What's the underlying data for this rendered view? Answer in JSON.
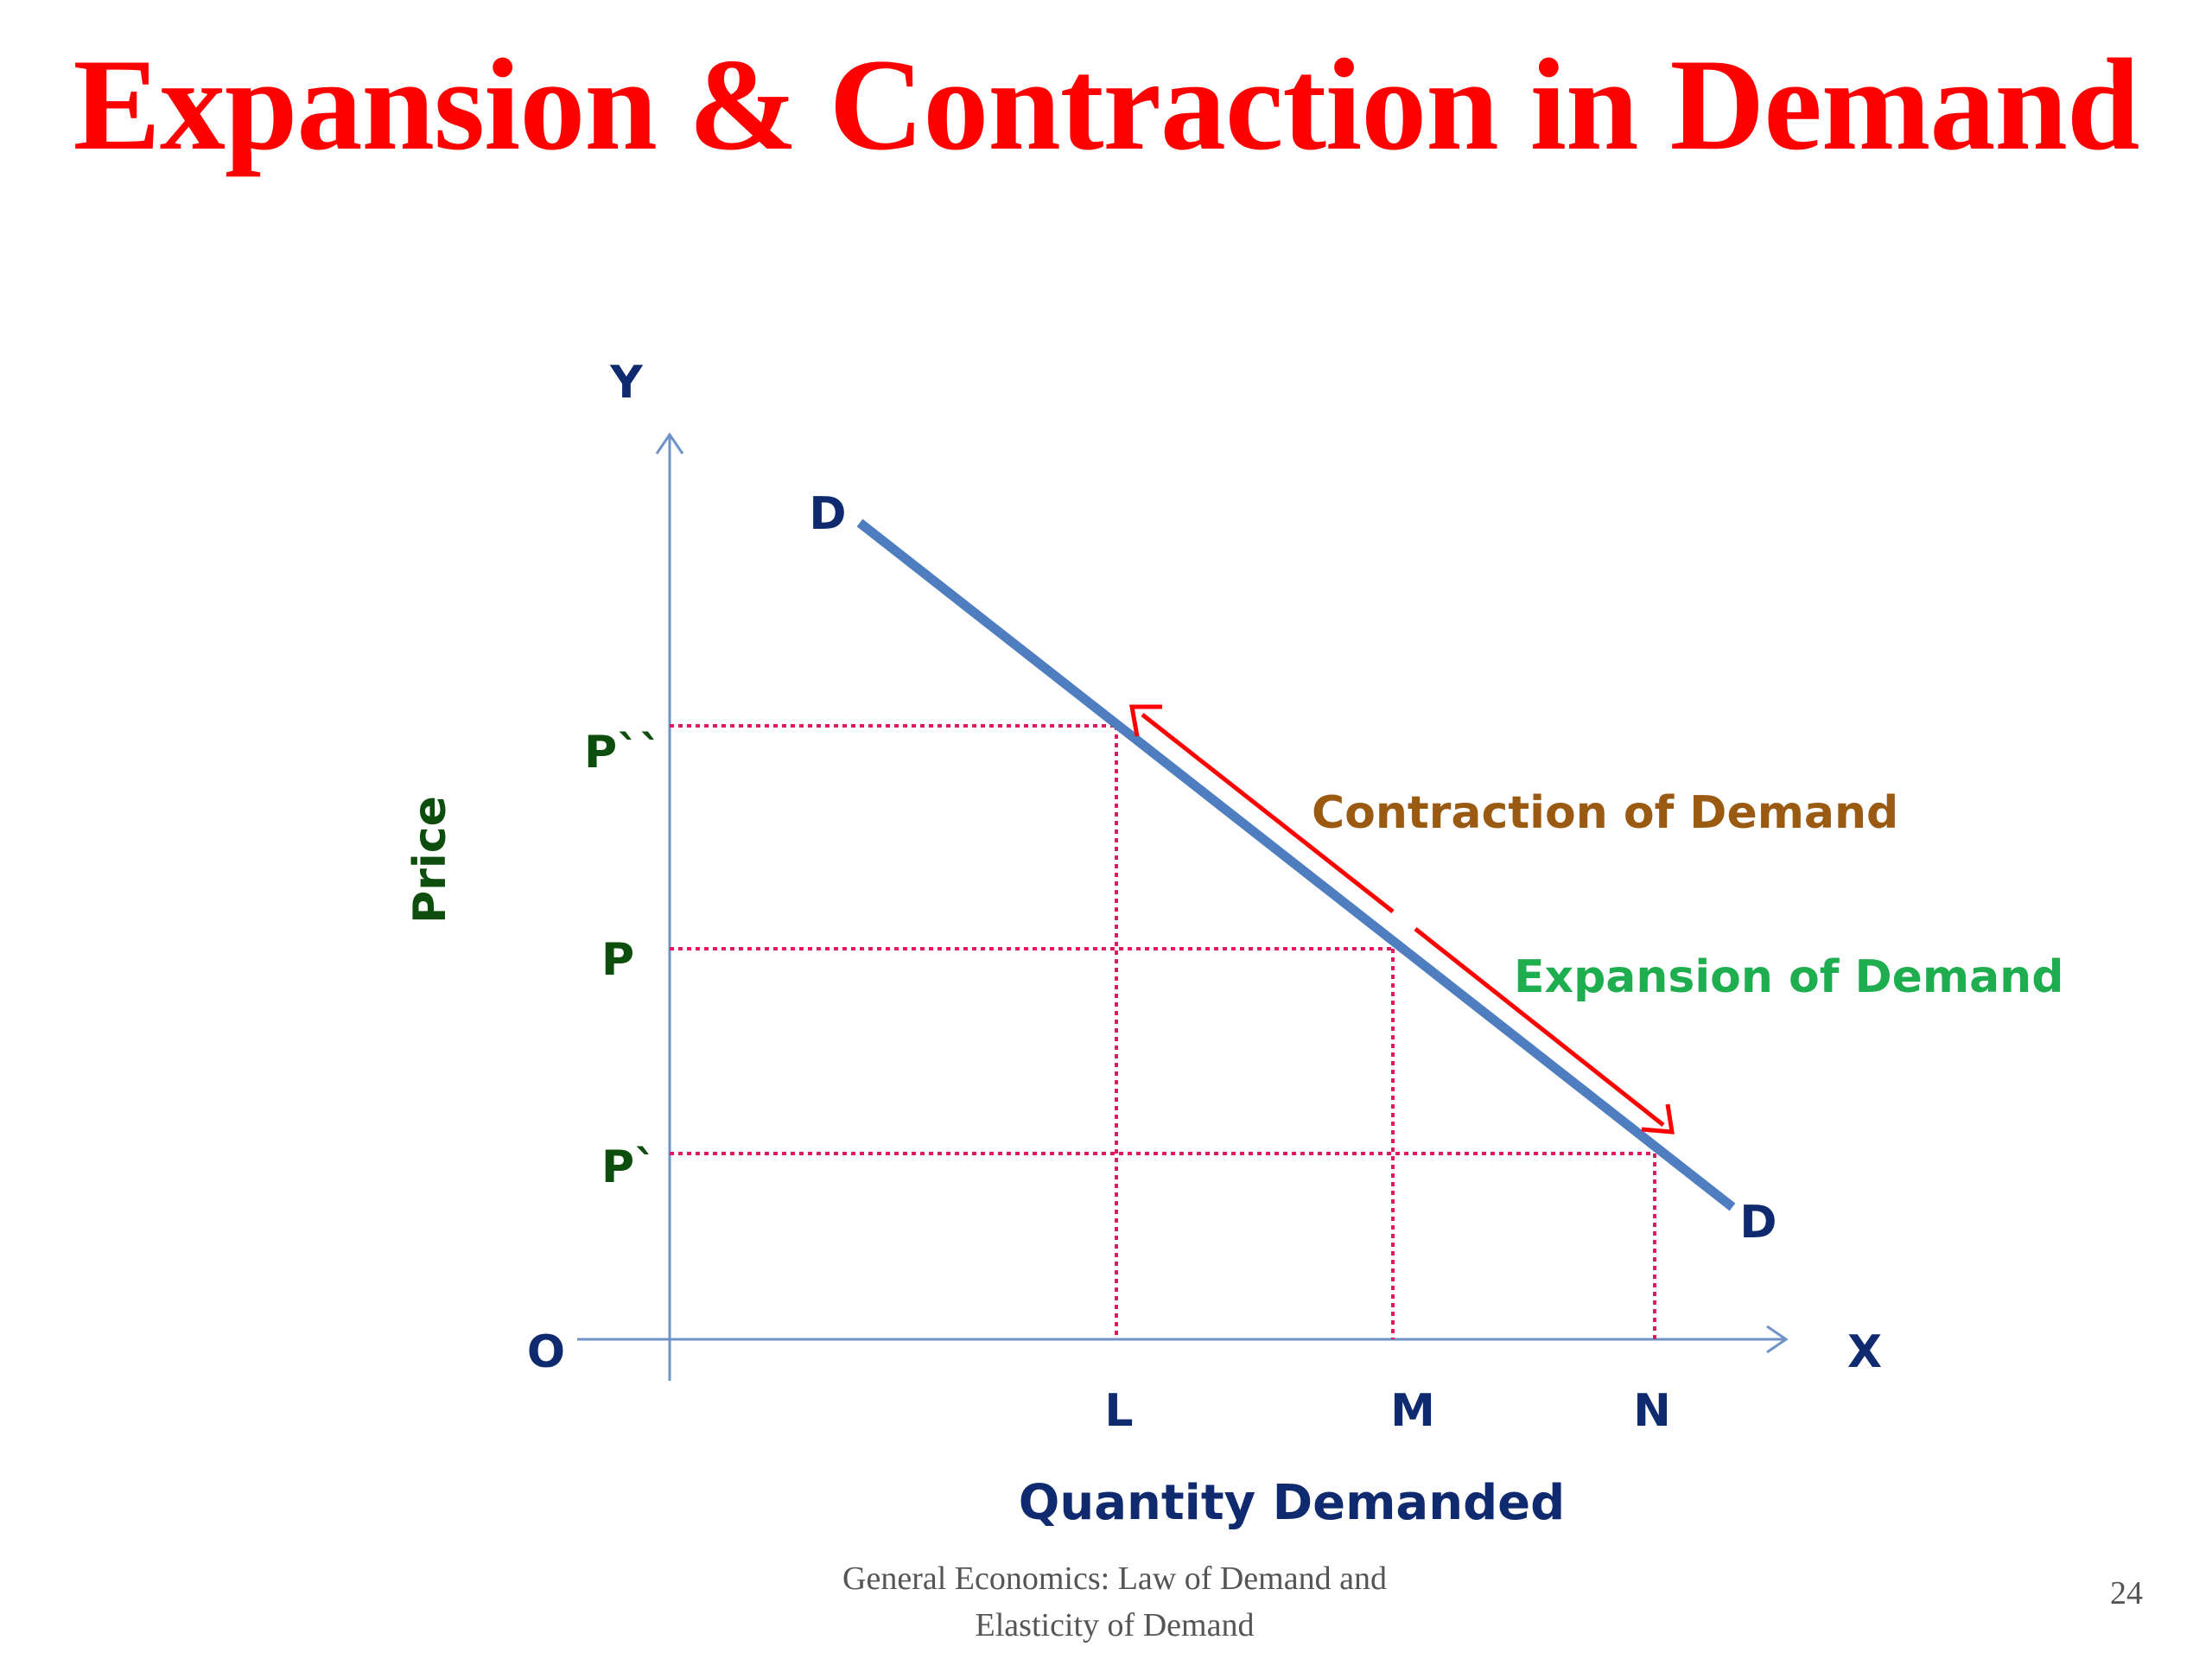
{
  "slide": {
    "title": "Expansion & Contraction in Demand",
    "footer_line1": "General Economics: Law of Demand and",
    "footer_line2": "Elasticity of  Demand",
    "page_number": "24"
  },
  "diagram": {
    "axis_y_letter": "Y",
    "axis_x_letter": "X",
    "origin_label": "O",
    "y_axis_title": "Price",
    "x_axis_title": "Quantity Demanded",
    "curve_label_top": "D",
    "curve_label_bottom": "D",
    "price_labels": [
      "P``",
      "P",
      "P`"
    ],
    "quantity_labels": [
      "L",
      "M",
      "N"
    ],
    "contraction_label": "Contraction of Demand",
    "expansion_label": "Expansion of Demand"
  },
  "colors": {
    "title": "#ff0000",
    "axis": "#6f93c7",
    "curve": "#4f7ec0",
    "guide": "#e8175d",
    "arrow": "#ff0000",
    "axis_letters": "#0f2a6e",
    "price_labels": "#0d4d0d",
    "contraction": "#9a5a12",
    "expansion": "#1fae4f",
    "footer": "#555555"
  }
}
